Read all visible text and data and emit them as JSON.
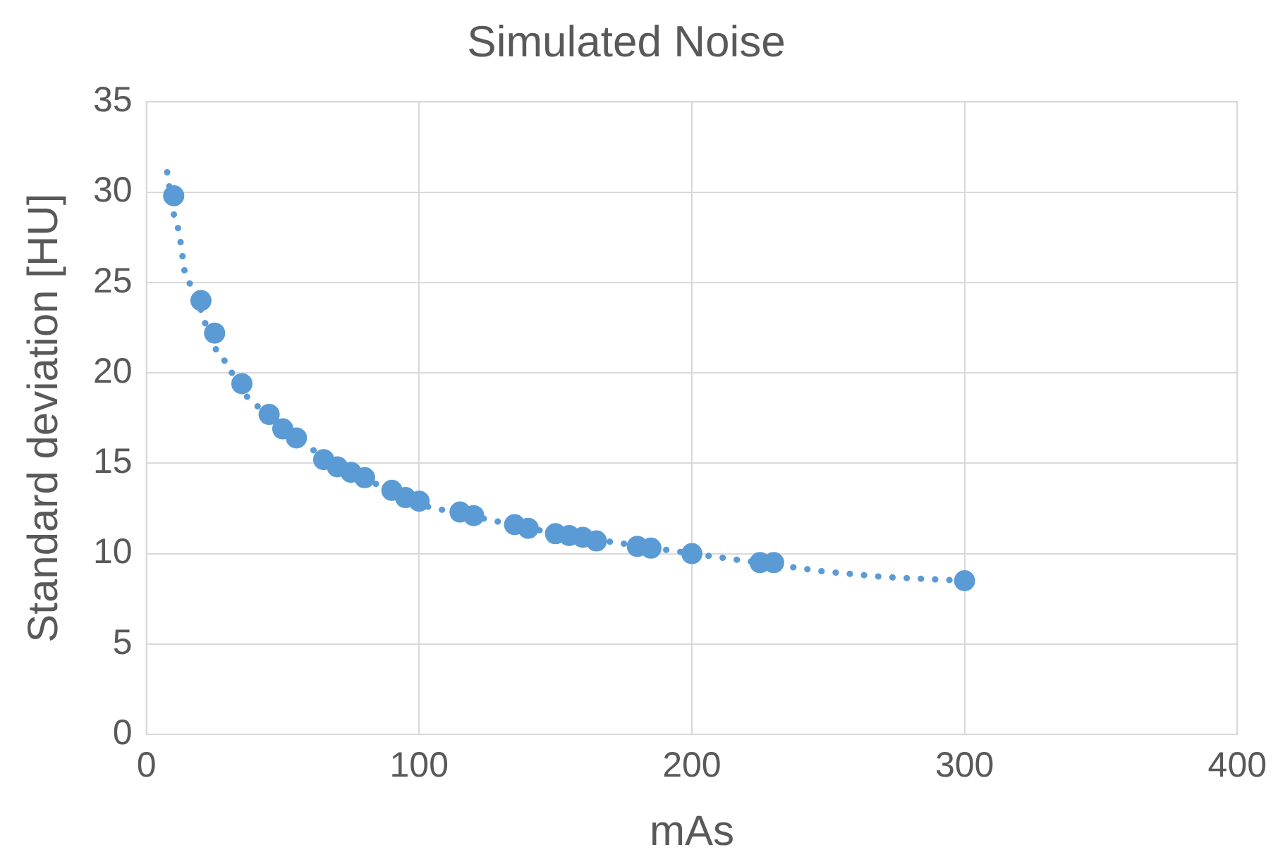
{
  "chart_data": {
    "type": "scatter",
    "title": "Simulated Noise",
    "xlabel": "mAs",
    "ylabel": "Standard deviation [HU]",
    "xlim": [
      0,
      400
    ],
    "xticks": [
      0,
      100,
      200,
      300,
      400
    ],
    "ylim": [
      0,
      35
    ],
    "yticks": [
      0,
      5,
      10,
      15,
      20,
      25,
      30,
      35
    ],
    "grid": true,
    "legend": false,
    "marker": "circle",
    "series": [
      {
        "type": "scatter",
        "color": "#5b9bd5",
        "x": [
          10,
          20,
          25,
          35,
          45,
          50,
          55,
          65,
          70,
          75,
          80,
          90,
          95,
          100,
          115,
          120,
          135,
          140,
          150,
          155,
          160,
          165,
          180,
          185,
          200,
          225,
          230,
          300
        ],
        "values": [
          29.8,
          24.0,
          22.2,
          19.4,
          17.7,
          16.9,
          16.4,
          15.2,
          14.8,
          14.5,
          14.2,
          13.5,
          13.1,
          12.9,
          12.3,
          12.1,
          11.6,
          11.4,
          11.1,
          11.0,
          10.9,
          10.7,
          10.4,
          10.3,
          10.0,
          9.5,
          9.5,
          8.5
        ]
      },
      {
        "type": "line",
        "color": "#5b9bd5",
        "marker": "none",
        "line_style": "dotted",
        "x": [
          7.6,
          9.8,
          12,
          14,
          19.5,
          24,
          29,
          36,
          50,
          70,
          103,
          150,
          200,
          249,
          271,
          300
        ],
        "values": [
          31.1,
          28.9,
          27.8,
          25.6,
          23.7,
          21.6,
          20.6,
          18.8,
          16.9,
          14.8,
          12.6,
          11.1,
          10.0,
          9.0,
          8.7,
          8.5
        ]
      }
    ]
  }
}
